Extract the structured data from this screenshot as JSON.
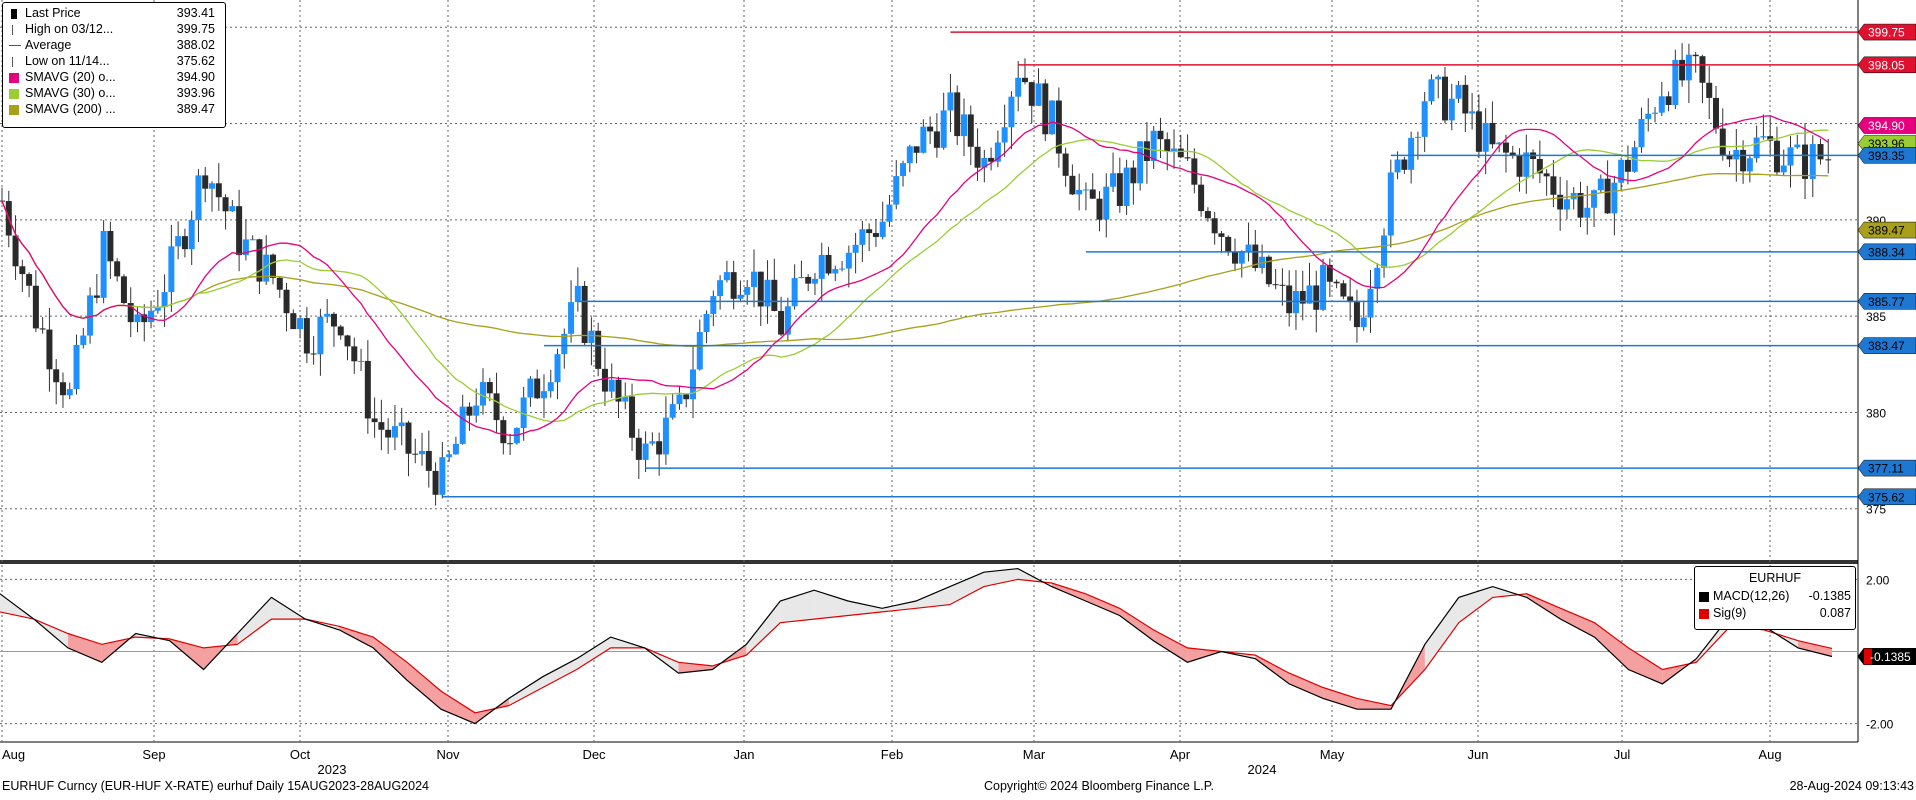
{
  "legend": {
    "items": [
      {
        "name": "Last Price",
        "value": "393.41",
        "color": "#000000",
        "icon": "candle-icon"
      },
      {
        "name": "High on 03/12...",
        "value": "399.75",
        "color": "#555555",
        "icon": "high-marker-icon"
      },
      {
        "name": "Average",
        "value": "388.02",
        "color": "#555555",
        "icon": "average-marker-icon"
      },
      {
        "name": "Low on 11/14...",
        "value": "375.62",
        "color": "#555555",
        "icon": "low-marker-icon"
      },
      {
        "name": "SMAVG (20)  o...",
        "value": "394.90",
        "color": "#e6007e"
      },
      {
        "name": "SMAVG (30)  o...",
        "value": "393.96",
        "color": "#9acd32"
      },
      {
        "name": "SMAVG (200) ...",
        "value": "389.47",
        "color": "#a89f1a"
      }
    ]
  },
  "macd_legend": {
    "title": "EURHUF",
    "items": [
      {
        "name": "MACD(12,26)",
        "value": "-0.1385",
        "color": "#000000"
      },
      {
        "name": "Sig(9)",
        "value": "0.087",
        "color": "#e00000"
      }
    ]
  },
  "footer": {
    "left": "EURHUF Curncy (EUR-HUF X-RATE) eurhuf  Daily 15AUG2023-28AUG2024",
    "center": "Copyright© 2024 Bloomberg Finance L.P.",
    "right": "28-Aug-2024 09:13:43"
  },
  "colors": {
    "up_candle": "#1e90ff",
    "down_candle": "#2a2a2a",
    "sma20": "#e6007e",
    "sma30": "#9acd32",
    "sma200": "#a89f1a",
    "resistance": "#e0102f",
    "support": "#1e78d2",
    "macd_fill_pos": "#e8e8e8",
    "macd_fill_neg": "#f4a0a0",
    "signal": "#e00000"
  },
  "chart_data": {
    "type": "candlestick",
    "title": "",
    "xlabel": "",
    "ylabel": "",
    "ylim": [
      374,
      401
    ],
    "y_ticks": [
      375,
      380,
      385,
      390
    ],
    "x_months": [
      "Aug",
      "Sep",
      "Oct",
      "Nov",
      "Dec",
      "Jan",
      "Feb",
      "Mar",
      "Apr",
      "May",
      "Jun",
      "Jul",
      "Aug"
    ],
    "x_years": [
      "2023",
      "2024"
    ],
    "grid": true,
    "price_path": [
      {
        "date": "2023-08-15",
        "close": 391.0
      },
      {
        "date": "2023-08-22",
        "close": 385.0
      },
      {
        "date": "2023-08-29",
        "close": 380.8
      },
      {
        "date": "2023-09-05",
        "close": 388.5
      },
      {
        "date": "2023-09-12",
        "close": 384.0
      },
      {
        "date": "2023-09-19",
        "close": 387.5
      },
      {
        "date": "2023-09-26",
        "close": 392.8
      },
      {
        "date": "2023-10-03",
        "close": 389.0
      },
      {
        "date": "2023-10-10",
        "close": 387.0
      },
      {
        "date": "2023-10-17",
        "close": 384.0
      },
      {
        "date": "2023-10-24",
        "close": 385.0
      },
      {
        "date": "2023-10-31",
        "close": 379.5
      },
      {
        "date": "2023-11-07",
        "close": 378.0
      },
      {
        "date": "2023-11-14",
        "close": 376.5
      },
      {
        "date": "2023-11-21",
        "close": 381.0
      },
      {
        "date": "2023-11-28",
        "close": 379.0
      },
      {
        "date": "2023-12-05",
        "close": 382.0
      },
      {
        "date": "2023-12-12",
        "close": 385.5
      },
      {
        "date": "2023-12-19",
        "close": 381.0
      },
      {
        "date": "2023-12-26",
        "close": 377.8
      },
      {
        "date": "2024-01-02",
        "close": 380.0
      },
      {
        "date": "2024-01-09",
        "close": 386.5
      },
      {
        "date": "2024-01-16",
        "close": 387.5
      },
      {
        "date": "2024-01-23",
        "close": 384.5
      },
      {
        "date": "2024-01-30",
        "close": 388.0
      },
      {
        "date": "2024-02-06",
        "close": 388.5
      },
      {
        "date": "2024-02-13",
        "close": 390.0
      },
      {
        "date": "2024-02-20",
        "close": 394.0
      },
      {
        "date": "2024-02-27",
        "close": 395.5
      },
      {
        "date": "2024-03-05",
        "close": 393.0
      },
      {
        "date": "2024-03-12",
        "close": 398.0
      },
      {
        "date": "2024-03-19",
        "close": 395.0
      },
      {
        "date": "2024-03-26",
        "close": 390.5
      },
      {
        "date": "2024-04-02",
        "close": 391.5
      },
      {
        "date": "2024-04-09",
        "close": 394.0
      },
      {
        "date": "2024-04-16",
        "close": 392.5
      },
      {
        "date": "2024-04-23",
        "close": 389.5
      },
      {
        "date": "2024-04-30",
        "close": 387.5
      },
      {
        "date": "2024-05-07",
        "close": 385.5
      },
      {
        "date": "2024-05-14",
        "close": 386.5
      },
      {
        "date": "2024-05-21",
        "close": 384.5
      },
      {
        "date": "2024-05-28",
        "close": 391.5
      },
      {
        "date": "2024-06-04",
        "close": 396.5
      },
      {
        "date": "2024-06-11",
        "close": 396.0
      },
      {
        "date": "2024-06-18",
        "close": 393.5
      },
      {
        "date": "2024-06-25",
        "close": 393.0
      },
      {
        "date": "2024-07-02",
        "close": 391.5
      },
      {
        "date": "2024-07-09",
        "close": 390.5
      },
      {
        "date": "2024-07-16",
        "close": 393.0
      },
      {
        "date": "2024-07-23",
        "close": 397.0
      },
      {
        "date": "2024-07-30",
        "close": 397.5
      },
      {
        "date": "2024-08-06",
        "close": 393.5
      },
      {
        "date": "2024-08-13",
        "close": 394.0
      },
      {
        "date": "2024-08-20",
        "close": 393.0
      },
      {
        "date": "2024-08-28",
        "close": 393.4
      }
    ],
    "price_labels": [
      {
        "value": 399.75,
        "text": "399.75",
        "bg": "#e0102f",
        "fg": "#ffffff"
      },
      {
        "value": 398.05,
        "text": "398.05",
        "bg": "#e0102f",
        "fg": "#ffffff"
      },
      {
        "value": 394.9,
        "text": "394.90",
        "bg": "#e6007e",
        "fg": "#ffffff"
      },
      {
        "value": 393.96,
        "text": "393.96",
        "bg": "#9acd32",
        "fg": "#000000"
      },
      {
        "value": 393.35,
        "text": "393.35",
        "bg": "#1e78d2",
        "fg": "#000000"
      },
      {
        "value": 389.47,
        "text": "389.47",
        "bg": "#a89f1a",
        "fg": "#000000"
      },
      {
        "value": 388.34,
        "text": "388.34",
        "bg": "#1e78d2",
        "fg": "#000000"
      },
      {
        "value": 385.77,
        "text": "385.77",
        "bg": "#1e78d2",
        "fg": "#000000"
      },
      {
        "value": 383.47,
        "text": "383.47",
        "bg": "#1e78d2",
        "fg": "#000000"
      },
      {
        "value": 377.11,
        "text": "377.11",
        "bg": "#1e78d2",
        "fg": "#000000"
      },
      {
        "value": 375.62,
        "text": "375.62",
        "bg": "#1e78d2",
        "fg": "#000000"
      }
    ],
    "horizontal_levels": [
      {
        "value": 399.75,
        "from": "2024-02-27",
        "kind": "resistance"
      },
      {
        "value": 398.05,
        "from": "2024-03-12",
        "kind": "resistance"
      },
      {
        "value": 393.35,
        "from": "2024-05-28",
        "kind": "support"
      },
      {
        "value": 388.34,
        "from": "2024-03-26",
        "kind": "support"
      },
      {
        "value": 385.77,
        "from": "2023-12-12",
        "kind": "support"
      },
      {
        "value": 383.47,
        "from": "2023-12-05",
        "kind": "support"
      },
      {
        "value": 377.11,
        "from": "2023-12-26",
        "kind": "support"
      },
      {
        "value": 375.62,
        "from": "2023-11-14",
        "kind": "support"
      }
    ],
    "macd": {
      "ylim": [
        -2.4,
        2.4
      ],
      "y_ticks": [
        "2.00",
        "-2.00"
      ],
      "last_value_label": "-0.1385",
      "macd_path": [
        1.6,
        0.9,
        0.1,
        -0.3,
        0.5,
        0.3,
        -0.5,
        0.5,
        1.5,
        0.9,
        0.6,
        0.1,
        -0.8,
        -1.6,
        -2.0,
        -1.3,
        -0.7,
        -0.2,
        0.4,
        0.1,
        -0.6,
        -0.5,
        0.2,
        1.4,
        1.7,
        1.4,
        1.2,
        1.4,
        1.8,
        2.2,
        2.3,
        1.8,
        1.4,
        1.0,
        0.3,
        -0.3,
        0.0,
        -0.2,
        -0.9,
        -1.3,
        -1.6,
        -1.6,
        0.2,
        1.5,
        1.8,
        1.5,
        0.9,
        0.4,
        -0.5,
        -0.9,
        -0.2,
        1.0,
        0.7,
        0.1,
        -0.14
      ],
      "signal_path": [
        1.1,
        0.9,
        0.5,
        0.2,
        0.4,
        0.35,
        0.1,
        0.2,
        0.9,
        0.9,
        0.7,
        0.4,
        -0.3,
        -1.1,
        -1.7,
        -1.5,
        -1.0,
        -0.5,
        0.1,
        0.1,
        -0.3,
        -0.4,
        -0.1,
        0.8,
        0.9,
        1.0,
        1.1,
        1.2,
        1.3,
        1.8,
        2.0,
        1.9,
        1.6,
        1.2,
        0.6,
        0.1,
        0.0,
        -0.1,
        -0.6,
        -1.0,
        -1.3,
        -1.5,
        -0.5,
        0.8,
        1.5,
        1.6,
        1.2,
        0.8,
        0.1,
        -0.5,
        -0.3,
        0.7,
        0.6,
        0.3,
        0.087
      ]
    }
  }
}
